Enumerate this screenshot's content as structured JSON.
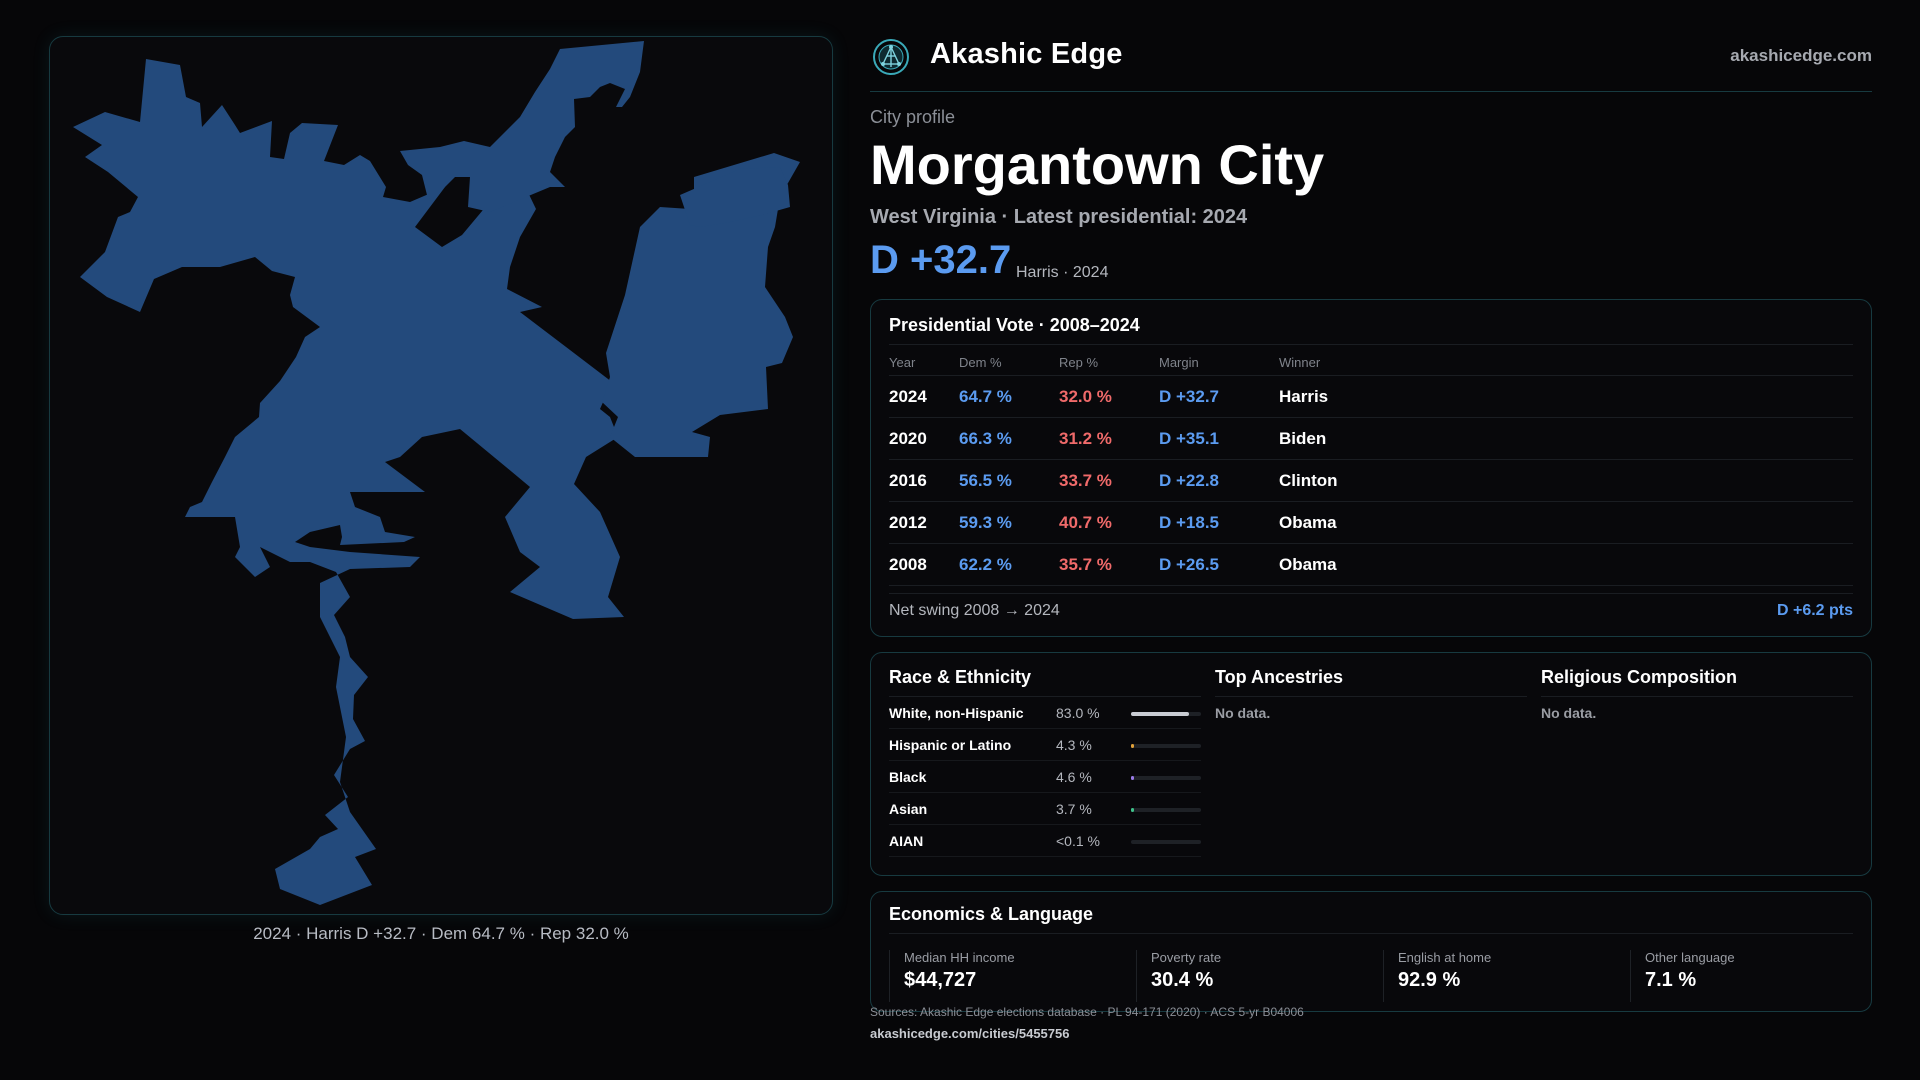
{
  "map": {
    "fill_color": "#234a7c",
    "caption": "2024 · Harris D +32.7 · Dem 64.7 % · Rep 32.0 %"
  },
  "header": {
    "logo_icon": "network-globe-icon",
    "brand": "Akashic Edge",
    "site": "akashicedge.com"
  },
  "profile": {
    "eyebrow": "City profile",
    "city": "Morgantown City",
    "subtitle": "West Virginia · Latest presidential: 2024",
    "margin": "D +32.7",
    "margin_note": "Harris · 2024"
  },
  "vote": {
    "title": "Presidential Vote · 2008–2024",
    "columns": [
      "Year",
      "Dem %",
      "Rep %",
      "Margin",
      "Winner"
    ],
    "rows": [
      {
        "year": "2024",
        "dem": "64.7 %",
        "rep": "32.0 %",
        "margin": "D +32.7",
        "winner": "Harris"
      },
      {
        "year": "2020",
        "dem": "66.3 %",
        "rep": "31.2 %",
        "margin": "D +35.1",
        "winner": "Biden"
      },
      {
        "year": "2016",
        "dem": "56.5 %",
        "rep": "33.7 %",
        "margin": "D +22.8",
        "winner": "Clinton"
      },
      {
        "year": "2012",
        "dem": "59.3 %",
        "rep": "40.7 %",
        "margin": "D +18.5",
        "winner": "Obama"
      },
      {
        "year": "2008",
        "dem": "62.2 %",
        "rep": "35.7 %",
        "margin": "D +26.5",
        "winner": "Obama"
      }
    ],
    "swing_label": "Net swing 2008 → 2024",
    "swing_value": "D +6.2 pts"
  },
  "race": {
    "title": "Race & Ethnicity",
    "rows": [
      {
        "label": "White, non-Hispanic",
        "value": "83.0 %",
        "share": 0.83,
        "color": "#c9ccd3"
      },
      {
        "label": "Hispanic or Latino",
        "value": "4.3 %",
        "share": 0.043,
        "color": "#e0a13a"
      },
      {
        "label": "Black",
        "value": "4.6 %",
        "share": 0.046,
        "color": "#9a7be8"
      },
      {
        "label": "Asian",
        "value": "3.7 %",
        "share": 0.037,
        "color": "#3fc28a"
      },
      {
        "label": "AIAN",
        "value": "<0.1 %",
        "share": 0.0,
        "color": "#c9ccd3"
      }
    ]
  },
  "ancestries": {
    "title": "Top Ancestries",
    "empty": "No data."
  },
  "religion": {
    "title": "Religious Composition",
    "empty": "No data."
  },
  "economics": {
    "title": "Economics & Language",
    "stats": [
      {
        "label": "Median HH income",
        "value": "$44,727"
      },
      {
        "label": "Poverty rate",
        "value": "30.4 %"
      },
      {
        "label": "English at home",
        "value": "92.9 %"
      },
      {
        "label": "Other language",
        "value": "7.1 %"
      }
    ]
  },
  "footer": {
    "sources": "Sources: Akashic Edge elections database · PL 94-171 (2020) · ACS 5-yr B04006",
    "link": "akashicedge.com/cities/5455756"
  }
}
